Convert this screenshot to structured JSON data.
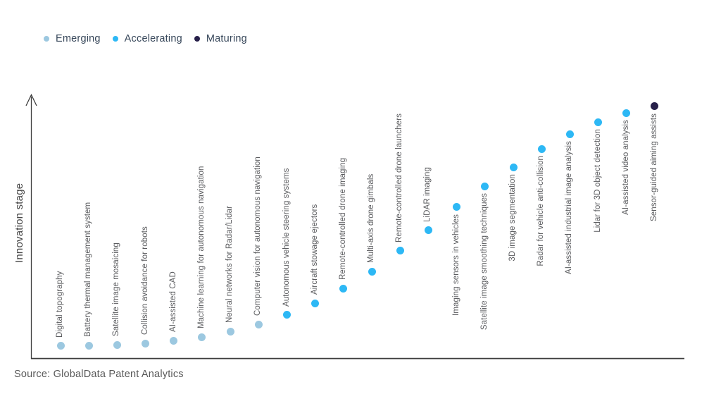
{
  "page": {
    "background": "#ffffff"
  },
  "legend": {
    "items": [
      {
        "label": "Emerging",
        "stage_key": "emerging",
        "color": "#9cc8e0"
      },
      {
        "label": "Accelerating",
        "stage_key": "accelerating",
        "color": "#2db8f5"
      },
      {
        "label": "Maturing",
        "stage_key": "maturing",
        "color": "#27204a"
      }
    ]
  },
  "chart_data": {
    "type": "scatter",
    "title": "",
    "xlabel": "",
    "ylabel": "Innovation stage",
    "y_axis": {
      "kind": "qualitative",
      "range": [
        0,
        1
      ],
      "ticks": false,
      "arrow": true
    },
    "x_axis": {
      "kind": "category-sequence",
      "ticks": false,
      "grid": false
    },
    "legend_position": "top-left",
    "stage_colors": {
      "emerging": "#9cc8e0",
      "accelerating": "#2db8f5",
      "maturing": "#27204a"
    },
    "points": [
      {
        "label": "Digital topography",
        "stage": "emerging",
        "level": 0.048,
        "label_position": "above"
      },
      {
        "label": "Battery thermal management system",
        "stage": "emerging",
        "level": 0.05,
        "label_position": "above"
      },
      {
        "label": "Satellite image mosaicing",
        "stage": "emerging",
        "level": 0.053,
        "label_position": "above"
      },
      {
        "label": "Collision avoidance for robots",
        "stage": "emerging",
        "level": 0.058,
        "label_position": "above"
      },
      {
        "label": "AI-assisted CAD",
        "stage": "emerging",
        "level": 0.069,
        "label_position": "above"
      },
      {
        "label": "Machine learning for autonomous navigation",
        "stage": "emerging",
        "level": 0.082,
        "label_position": "above"
      },
      {
        "label": "Neural networks for Radar/Lidar",
        "stage": "emerging",
        "level": 0.103,
        "label_position": "above"
      },
      {
        "label": "Computer vision for autonomous navigation",
        "stage": "emerging",
        "level": 0.13,
        "label_position": "above"
      },
      {
        "label": "Autonomous vehicle steering systems",
        "stage": "accelerating",
        "level": 0.165,
        "label_position": "above"
      },
      {
        "label": "Aircraft stowage ejectors",
        "stage": "accelerating",
        "level": 0.209,
        "label_position": "above"
      },
      {
        "label": "Remote-controlled drone imaging",
        "stage": "accelerating",
        "level": 0.265,
        "label_position": "above"
      },
      {
        "label": "Multi-axis drone gimbals",
        "stage": "accelerating",
        "level": 0.329,
        "label_position": "above"
      },
      {
        "label": "Remote-controlled drone launchers",
        "stage": "accelerating",
        "level": 0.407,
        "label_position": "above"
      },
      {
        "label": "LiDAR imaging",
        "stage": "accelerating",
        "level": 0.485,
        "label_position": "above"
      },
      {
        "label": "Imaging sensors in vehicles",
        "stage": "accelerating",
        "level": 0.572,
        "label_position": "below"
      },
      {
        "label": "Satellite image smoothing techniques",
        "stage": "accelerating",
        "level": 0.651,
        "label_position": "below"
      },
      {
        "label": "3D image segmentation",
        "stage": "accelerating",
        "level": 0.723,
        "label_position": "below"
      },
      {
        "label": "Radar for vehicle anti-collision",
        "stage": "accelerating",
        "level": 0.792,
        "label_position": "below"
      },
      {
        "label": "AI-assisted industrial image analysis",
        "stage": "accelerating",
        "level": 0.848,
        "label_position": "below"
      },
      {
        "label": "Lidar for 3D object detection",
        "stage": "accelerating",
        "level": 0.893,
        "label_position": "below"
      },
      {
        "label": "AI-assisted video analysis",
        "stage": "accelerating",
        "level": 0.928,
        "label_position": "below"
      },
      {
        "label": "Sensor-guided aiming assists",
        "stage": "maturing",
        "level": 0.953,
        "label_position": "below"
      }
    ]
  },
  "axis_style": {
    "color": "#3d3d3d"
  },
  "source": {
    "text": "Source: GlobalData Patent Analytics"
  }
}
